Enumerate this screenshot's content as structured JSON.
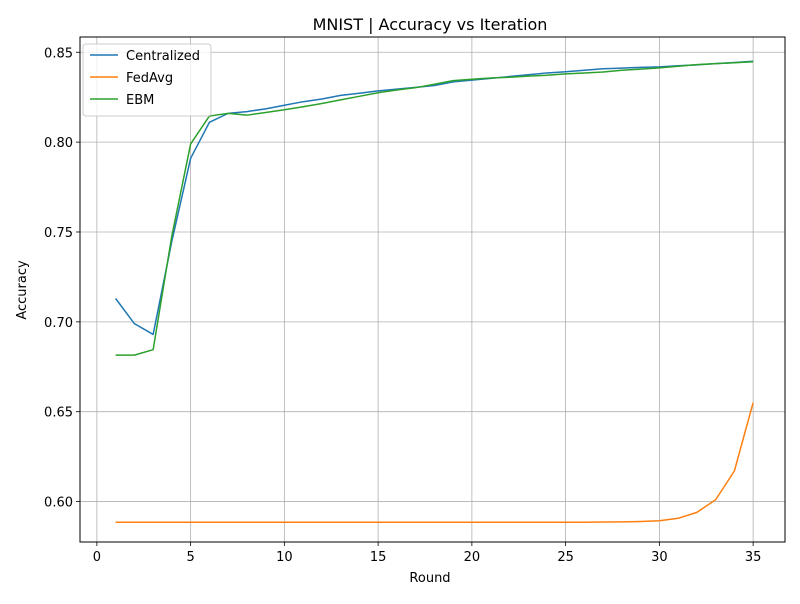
{
  "chart_data": {
    "type": "line",
    "title": "MNIST | Accuracy vs Iteration",
    "xlabel": "Round",
    "ylabel": "Accuracy",
    "xlim": [
      -0.9,
      36.7
    ],
    "ylim": [
      0.5775,
      0.8585
    ],
    "xticks": [
      0,
      5,
      10,
      15,
      20,
      25,
      30,
      35
    ],
    "xtick_labels": [
      "0",
      "5",
      "10",
      "15",
      "20",
      "25",
      "30",
      "35"
    ],
    "yticks": [
      0.6,
      0.65,
      0.7,
      0.75,
      0.8,
      0.85
    ],
    "ytick_labels": [
      "0.60",
      "0.65",
      "0.70",
      "0.75",
      "0.80",
      "0.85"
    ],
    "grid": true,
    "legend_position": "top-left",
    "x": [
      1,
      2,
      3,
      4,
      5,
      6,
      7,
      8,
      9,
      10,
      11,
      12,
      13,
      14,
      15,
      16,
      17,
      18,
      19,
      20,
      21,
      22,
      23,
      24,
      25,
      26,
      27,
      28,
      29,
      30,
      31,
      32,
      33,
      34,
      35
    ],
    "series": [
      {
        "name": "Centralized",
        "color": "#1f77b4",
        "values": [
          0.713,
          0.699,
          0.693,
          0.745,
          0.791,
          0.811,
          0.816,
          0.817,
          0.8185,
          0.8205,
          0.8225,
          0.824,
          0.826,
          0.8272,
          0.8285,
          0.8295,
          0.8305,
          0.8315,
          0.8335,
          0.8345,
          0.8355,
          0.8365,
          0.8375,
          0.8385,
          0.8392,
          0.84,
          0.8408,
          0.8412,
          0.8416,
          0.8419,
          0.8425,
          0.843,
          0.8437,
          0.8443,
          0.845
        ]
      },
      {
        "name": "FedAvg",
        "color": "#ff7f0e",
        "values": [
          0.5885,
          0.5885,
          0.5885,
          0.5885,
          0.5885,
          0.5885,
          0.5885,
          0.5885,
          0.5885,
          0.5885,
          0.5885,
          0.5885,
          0.5885,
          0.5885,
          0.5885,
          0.5885,
          0.5885,
          0.5885,
          0.5885,
          0.5885,
          0.5885,
          0.5885,
          0.5885,
          0.5885,
          0.5885,
          0.5885,
          0.5886,
          0.5887,
          0.5889,
          0.5893,
          0.5907,
          0.594,
          0.601,
          0.617,
          0.655
        ]
      },
      {
        "name": "EBM",
        "color": "#2ca02c",
        "values": [
          0.6815,
          0.6815,
          0.6845,
          0.748,
          0.799,
          0.8145,
          0.816,
          0.815,
          0.8165,
          0.818,
          0.8197,
          0.8215,
          0.8235,
          0.8255,
          0.8275,
          0.829,
          0.8303,
          0.8322,
          0.8342,
          0.835,
          0.8357,
          0.8361,
          0.8367,
          0.8372,
          0.838,
          0.8385,
          0.839,
          0.84,
          0.8406,
          0.8413,
          0.8422,
          0.8431,
          0.8437,
          0.8442,
          0.8447
        ]
      }
    ]
  }
}
